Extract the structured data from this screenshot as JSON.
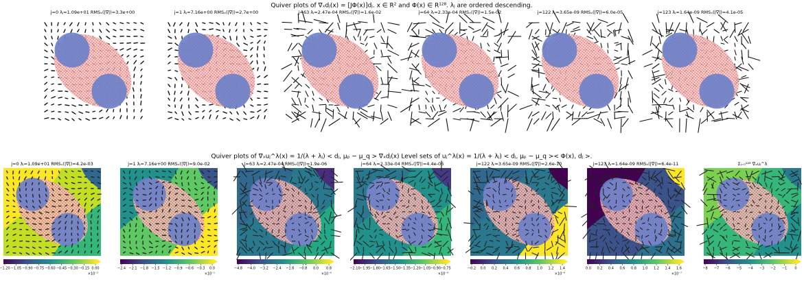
{
  "figure_title": "Quiver plots of ∇ₓdⱼ(x) = [JΦ(x)]dⱼ. x ∈ R² and Φ(x) ∈ R¹²⁸. λⱼ are ordered descending.",
  "top_panels": [
    {
      "title": "j=0 λⱼ=1.09e+01 RMSₓ(|∇|)=3.3e+00"
    },
    {
      "title": "j=1 λⱼ=7.16e+00 RMSₓ(|∇|)=2.7e+00"
    },
    {
      "title": "j=63 λⱼ=2.47e-04 RMSₓ(|∇|)=1.6e-02"
    },
    {
      "title": "j=64 λⱼ=2.33e-04 RMSₓ(|∇|)=1.5e-02"
    },
    {
      "title": "j=122 λⱼ=3.65e-09 RMSₓ(|∇|)=6.0e-05"
    },
    {
      "title": "j=123 λⱼ=1.64e-09 RMSₓ(|∇|)=4.1e-05"
    }
  ],
  "section_title": "Quiver plots of ∇ₓuⱼ^λ(x) = 1/(λ + λⱼ) < dⱼ, μₚ − μ_q > ∇ₓdⱼ(x) Level sets of uⱼ^λ(x) = 1/(λ + λⱼ) < dⱼ, μₚ − μ_q >< Φ(x), dⱼ >.",
  "bottom_panels": [
    {
      "title": "j=0 λⱼ=1.09e+01 RMSₓ(|∇|)=4.2e-03",
      "colorbar_ticks": [
        "−1.20",
        "−1.05",
        "−0.90",
        "−0.75",
        "−0.60",
        "−0.45",
        "−0.30",
        "−0.15",
        "0.00"
      ],
      "colorbar_multiplier": "×10⁻²"
    },
    {
      "title": "j=1 λⱼ=7.16e+00 RMSₓ(|∇|)=9.0e-02",
      "colorbar_ticks": [
        "−2.4",
        "−2.1",
        "−1.8",
        "−1.5",
        "−1.2",
        "−0.9",
        "−0.6",
        "−0.3",
        "0.0"
      ],
      "colorbar_multiplier": "×10⁻¹"
    },
    {
      "title": "j=63 λⱼ=2.47e-04 RMSₓ(|∇|)=1.9e-06",
      "colorbar_ticks": [
        "−4.8",
        "−4.0",
        "−3.2",
        "−2.4",
        "−1.6",
        "−0.8",
        "0.0",
        "0.8"
      ],
      "colorbar_multiplier": "×10⁻⁶"
    },
    {
      "title": "j=64 λⱼ=2.33e-04 RMSₓ(|∇|)=4.4e-06",
      "colorbar_ticks": [
        "−2.10",
        "−1.95",
        "−1.80",
        "−1.65",
        "−1.50",
        "−1.35",
        "−1.20",
        "−1.05",
        "−0.90",
        "−0.75"
      ],
      "colorbar_multiplier": "×10⁻⁴"
    },
    {
      "title": "j=122 λⱼ=3.65e-09 RMSₓ(|∇|)=2.6e-10",
      "colorbar_ticks": [
        "−0.2",
        "0.0",
        "0.2",
        "0.4",
        "0.6",
        "0.8",
        "1.0",
        "1.2",
        "1.4"
      ],
      "colorbar_multiplier": "×10⁻⁹"
    },
    {
      "title": "j=123 λⱼ=1.64e-09 RMSₓ(|∇|)=6.4e-11",
      "colorbar_ticks": [
        "0.0",
        "0.2",
        "0.4",
        "0.6",
        "0.8",
        "1.0",
        "1.2",
        "1.4",
        "1.6"
      ],
      "colorbar_multiplier": "×10⁻⁷"
    },
    {
      "title": "Σⱼ₌₀¹²⁸ ∇ₓuⱼ^λ",
      "colorbar_ticks": [
        "−8",
        "−7",
        "−6",
        "−5",
        "−4",
        "−3",
        "−2",
        "−1",
        "0"
      ]
    }
  ]
}
